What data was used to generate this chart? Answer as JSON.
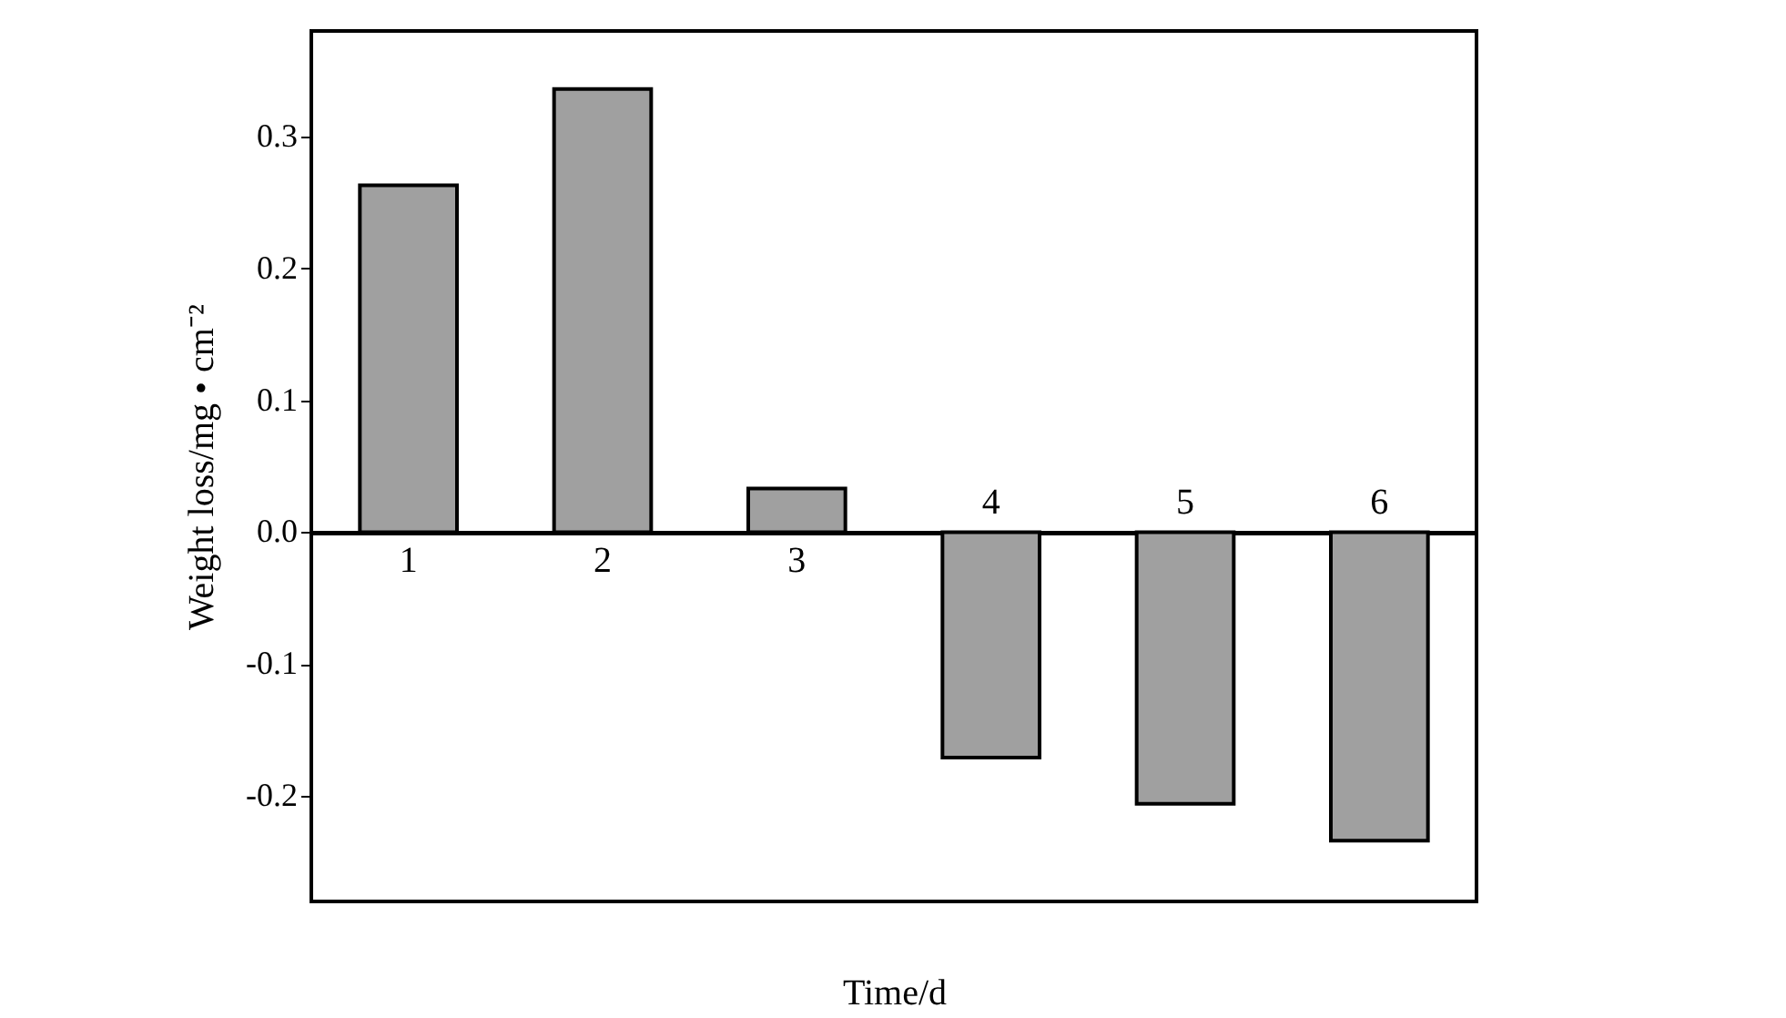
{
  "chart_data": {
    "type": "bar",
    "xlabel": "Time/d",
    "ylabel": "Weight loss/mg • cm⁻²",
    "categories": [
      "1",
      "2",
      "3",
      "4",
      "5",
      "6"
    ],
    "values": [
      0.263,
      0.336,
      0.033,
      -0.171,
      -0.206,
      -0.234
    ],
    "color": "#a0a0a0",
    "ylim": [
      -0.28,
      0.38
    ],
    "yticks": [
      {
        "value": -0.2,
        "label": "-0.2"
      },
      {
        "value": -0.1,
        "label": "-0.1"
      },
      {
        "value": 0,
        "label": "0.0"
      },
      {
        "value": 0.1,
        "label": "0.1"
      },
      {
        "value": 0.2,
        "label": "0.2"
      },
      {
        "value": 0.3,
        "label": "0.3"
      }
    ],
    "grid": false
  }
}
